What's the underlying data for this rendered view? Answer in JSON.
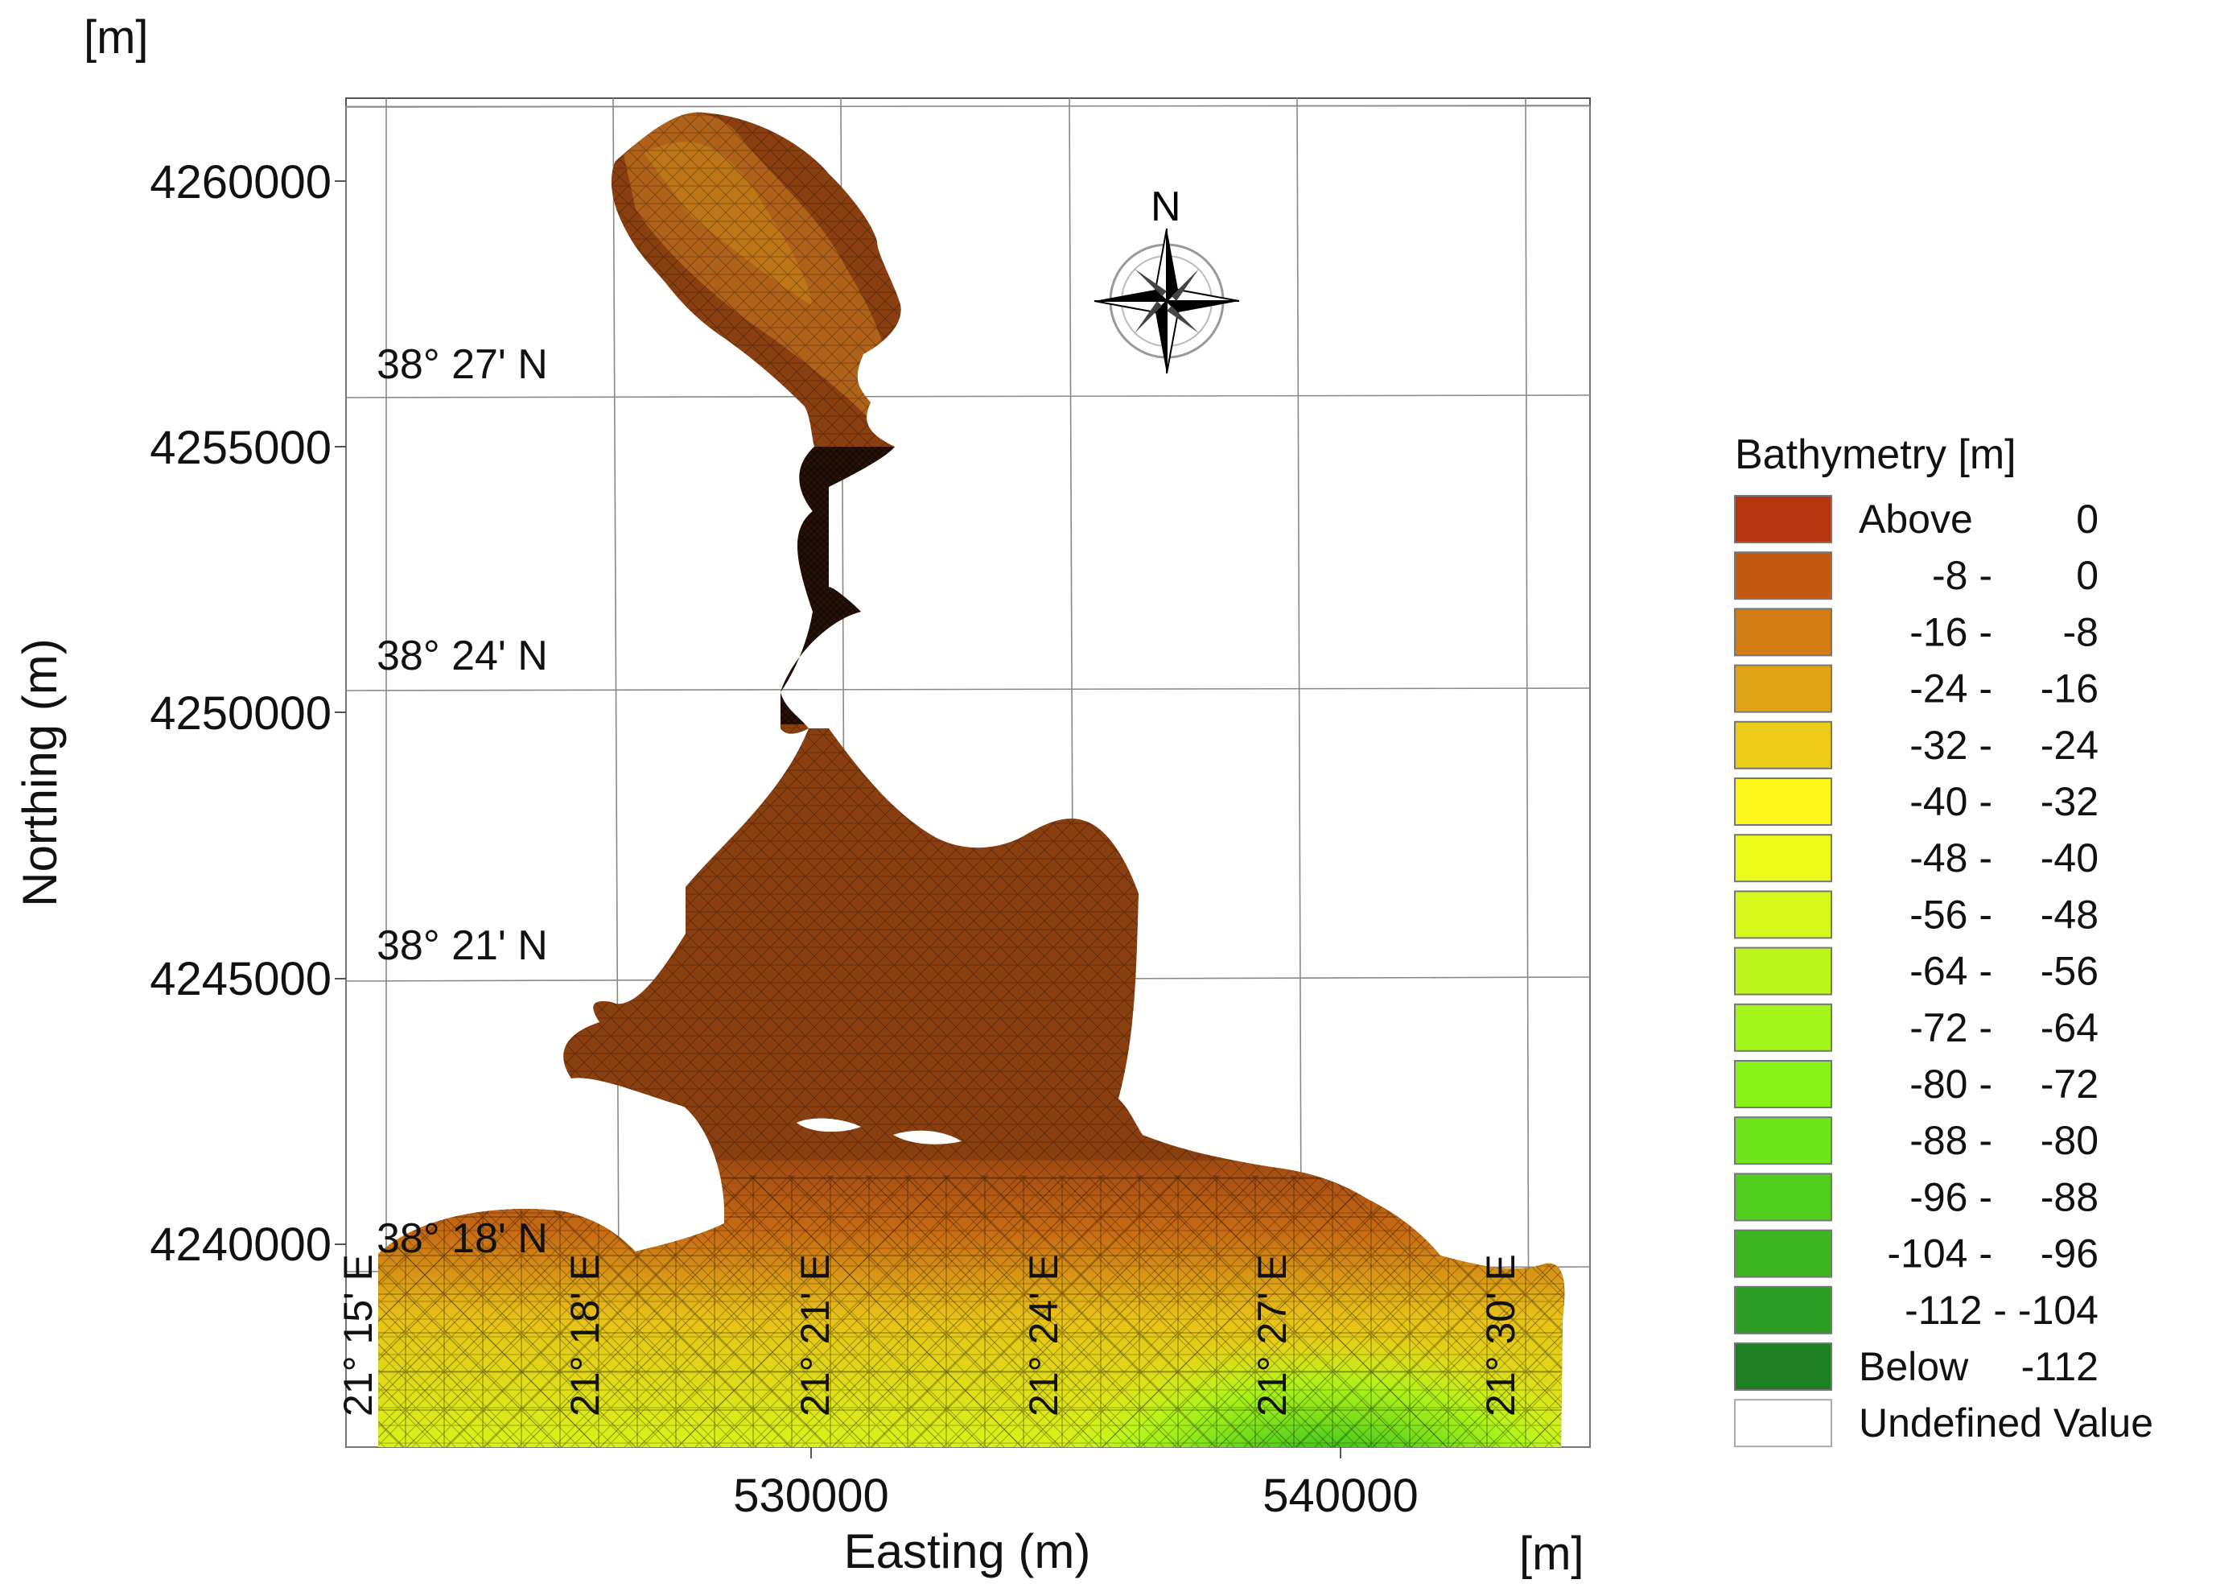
{
  "map": {
    "unit_top": "[m]",
    "unit_bottom": "[m]",
    "y_axis_label": "Northing (m)",
    "x_axis_label": "Easting (m)",
    "northing_ticks": [
      "4260000",
      "4255000",
      "4250000",
      "4245000",
      "4240000"
    ],
    "easting_ticks": [
      "530000",
      "540000"
    ],
    "latitude_labels": [
      "38° 27' N",
      "38° 24' N",
      "38° 21' N",
      "38° 18' N"
    ],
    "longitude_labels": [
      "21° 15' E",
      "21° 18' E",
      "21° 21' E",
      "21° 24' E",
      "21° 27' E",
      "21° 30' E"
    ],
    "north_arrow_label": "N",
    "colors": {
      "land_brown": "#8a3f10",
      "dense_mesh": "#2a1208",
      "frame": "#555555",
      "grid": "#888888"
    }
  },
  "legend": {
    "title": "Bathymetry [m]",
    "items": [
      {
        "from": "Above",
        "to": "0",
        "color": "#b5360f"
      },
      {
        "from": "-8 -",
        "to": "0",
        "color": "#c45a12"
      },
      {
        "from": "-16 -",
        "to": "-8",
        "color": "#d27d14"
      },
      {
        "from": "-24 -",
        "to": "-16",
        "color": "#e0a317"
      },
      {
        "from": "-32 -",
        "to": "-24",
        "color": "#edcb19"
      },
      {
        "from": "-40 -",
        "to": "-32",
        "color": "#fbf71b"
      },
      {
        "from": "-48 -",
        "to": "-40",
        "color": "#ecfa1a"
      },
      {
        "from": "-56 -",
        "to": "-48",
        "color": "#d6f81a"
      },
      {
        "from": "-64 -",
        "to": "-56",
        "color": "#bdf61a"
      },
      {
        "from": "-72 -",
        "to": "-64",
        "color": "#a3f61a"
      },
      {
        "from": "-80 -",
        "to": "-72",
        "color": "#87f218"
      },
      {
        "from": "-88 -",
        "to": "-80",
        "color": "#6ee41a"
      },
      {
        "from": "-96 -",
        "to": "-88",
        "color": "#52cf1c"
      },
      {
        "from": "-104 -",
        "to": "-96",
        "color": "#3cb51f"
      },
      {
        "from": "-112 - -104",
        "to": "",
        "color": "#2b9b22"
      },
      {
        "from": "Below",
        "to": "-112",
        "color": "#1d7f22"
      },
      {
        "from": "Undefined Value",
        "to": "",
        "color": "#ffffff"
      }
    ]
  }
}
